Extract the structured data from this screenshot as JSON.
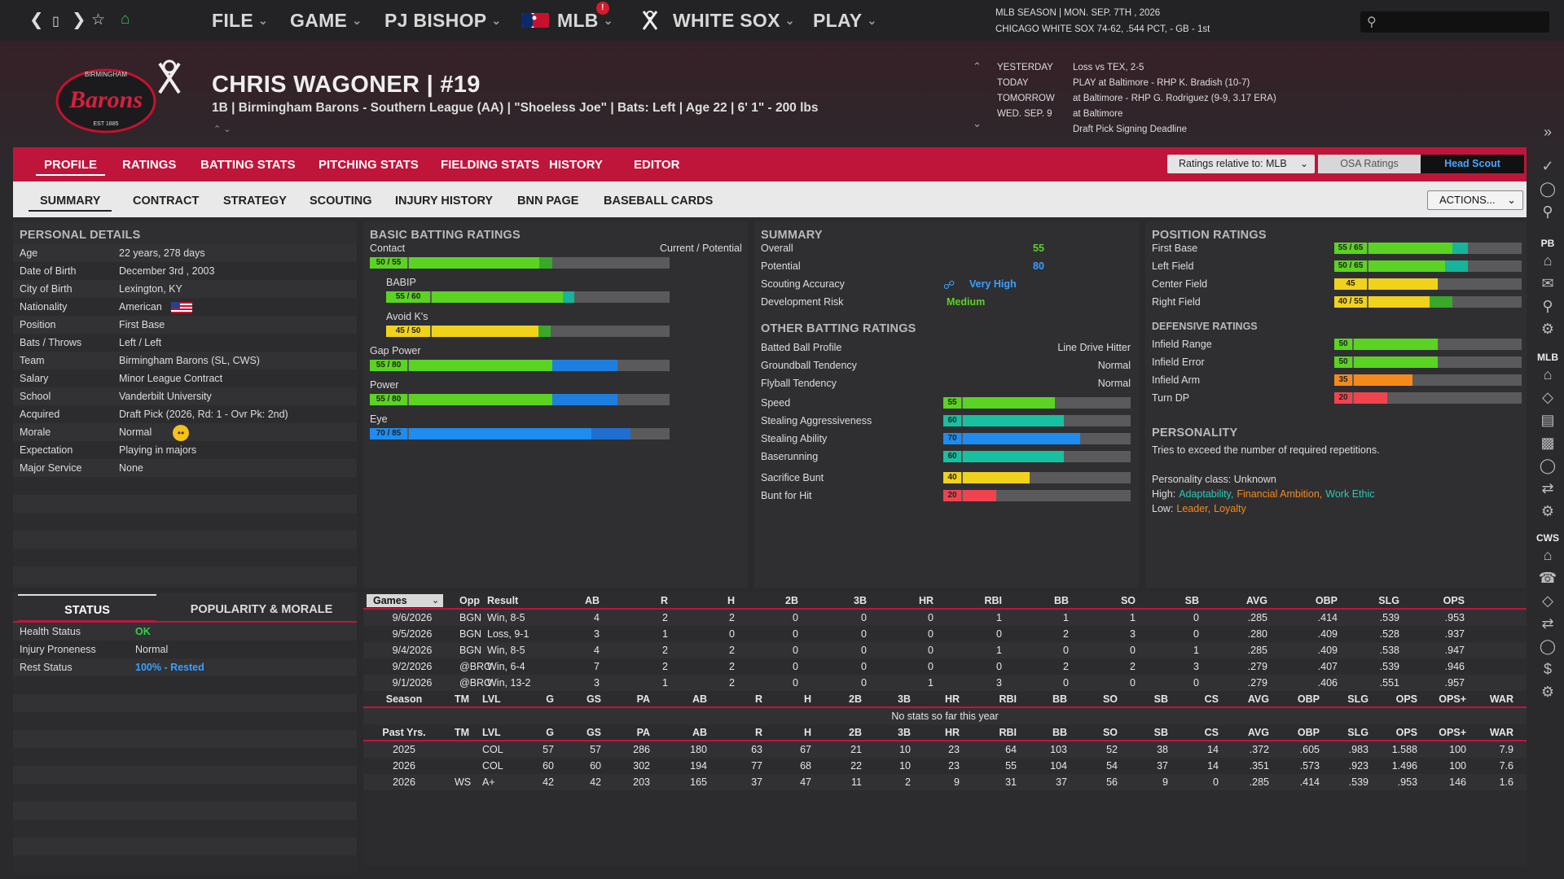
{
  "nav": {
    "menus": [
      "FILE",
      "GAME",
      "PJ BISHOP",
      "MLB",
      "WHITE SOX",
      "PLAY"
    ],
    "mlb_badge": "!"
  },
  "season": {
    "line1": "MLB SEASON  |  MON. SEP. 7TH , 2026",
    "line2": "CHICAGO WHITE SOX  74-62, .544 PCT, - GB - 1st"
  },
  "player": {
    "name": "CHRIS WAGONER  |  #19",
    "info": "1B | Birmingham Barons - Southern League (AA)  |  \"Shoeless Joe\" | Bats: Left  |  Age 22  |  6' 1\"  - 200 lbs",
    "team_logo_text": "Barons",
    "team_logo_top": "BIRMINGHAM",
    "team_logo_bottom": "EST 1885"
  },
  "schedule": [
    {
      "k": "YESTERDAY",
      "v": "Loss vs TEX, 2-5"
    },
    {
      "k": "TODAY",
      "v": "PLAY at Baltimore - RHP K. Bradish (10-7)"
    },
    {
      "k": "TOMORROW",
      "v": "at Baltimore - RHP G. Rodriguez (9-9, 3.17 ERA)"
    },
    {
      "k": "WED. SEP. 9",
      "v": "at Baltimore"
    },
    {
      "k": "",
      "v": "Draft Pick Signing Deadline"
    }
  ],
  "tabs1": [
    "PROFILE",
    "RATINGS",
    "BATTING STATS",
    "PITCHING STATS",
    "FIELDING STATS",
    "HISTORY",
    "EDITOR"
  ],
  "tabs2": [
    "SUMMARY",
    "CONTRACT",
    "STRATEGY",
    "SCOUTING",
    "INJURY HISTORY",
    "BNN PAGE",
    "BASEBALL CARDS"
  ],
  "controls": {
    "ratings_rel": "Ratings relative to: MLB",
    "osa": "OSA Ratings",
    "head_scout": "Head Scout",
    "actions": "ACTIONS..."
  },
  "personal": {
    "title": "PERSONAL DETAILS",
    "rows": [
      {
        "k": "Age",
        "v": "22 years, 278 days"
      },
      {
        "k": "Date of Birth",
        "v": "December 3rd , 2003"
      },
      {
        "k": "City of Birth",
        "v": "Lexington, KY"
      },
      {
        "k": "Nationality",
        "v": "American"
      },
      {
        "k": "Position",
        "v": "First Base"
      },
      {
        "k": "Bats / Throws",
        "v": "Left / Left"
      },
      {
        "k": "Team",
        "v": "Birmingham Barons (SL, CWS)"
      },
      {
        "k": "Salary",
        "v": "Minor League Contract"
      },
      {
        "k": "School",
        "v": "Vanderbilt University"
      },
      {
        "k": "Acquired",
        "v": "Draft Pick (2026, Rd: 1 - Ovr Pk: 2nd)"
      },
      {
        "k": "Morale",
        "v": "Normal"
      },
      {
        "k": "Expectation",
        "v": "Playing in majors"
      },
      {
        "k": "Major Service",
        "v": "None"
      }
    ]
  },
  "status": {
    "tab_status": "STATUS",
    "tab_pop": "POPULARITY & MORALE",
    "rows": [
      {
        "k": "Health Status",
        "v": "OK",
        "color": "#2fd44a"
      },
      {
        "k": "Injury Proneness",
        "v": "Normal",
        "color": "#dddddd"
      },
      {
        "k": "Rest Status",
        "v": "100% - Rested",
        "color": "#3aa0ff"
      }
    ]
  },
  "batting": {
    "title": "BASIC BATTING RATINGS",
    "hdr": "Current / Potential",
    "rows": [
      {
        "name": "Contact",
        "label": "50 / 55",
        "cur": 50,
        "pot": 55,
        "color": "#5bd322",
        "pcolor": "#3aa828",
        "indent": false
      },
      {
        "name": "BABIP",
        "label": "55 / 60",
        "cur": 55,
        "pot": 60,
        "color": "#5bd322",
        "pcolor": "#17b39a",
        "indent": true
      },
      {
        "name": "Avoid K's",
        "label": "45 / 50",
        "cur": 45,
        "pot": 50,
        "color": "#f1d21b",
        "pcolor": "#3aa828",
        "indent": true
      },
      {
        "name": "Gap Power",
        "label": "55 / 80",
        "cur": 55,
        "pot": 80,
        "color": "#5bd322",
        "pcolor": "#1f7fe0",
        "indent": false
      },
      {
        "name": "Power",
        "label": "55 / 80",
        "cur": 55,
        "pot": 80,
        "color": "#5bd322",
        "pcolor": "#1f7fe0",
        "indent": false
      },
      {
        "name": "Eye",
        "label": "70 / 85",
        "cur": 70,
        "pot": 85,
        "color": "#1e8cf0",
        "pcolor": "#1f6fd0",
        "indent": false
      }
    ]
  },
  "summary": {
    "title": "SUMMARY",
    "rows": [
      {
        "k": "Overall",
        "v": "55",
        "color": "#5bd322"
      },
      {
        "k": "Potential",
        "v": "80",
        "color": "#3aa0ff"
      },
      {
        "k": "Scouting Accuracy",
        "v": "Very High",
        "color": "#3aa0ff"
      },
      {
        "k": "Development Risk",
        "v": "Medium",
        "color": "#5bd322"
      }
    ]
  },
  "other": {
    "title": "OTHER BATTING RATINGS",
    "text_rows": [
      {
        "k": "Batted Ball Profile",
        "v": "Line Drive Hitter"
      },
      {
        "k": "Groundball Tendency",
        "v": "Normal"
      },
      {
        "k": "Flyball Tendency",
        "v": "Normal"
      }
    ],
    "bars": [
      {
        "k": "Speed",
        "v": 55,
        "label": "55",
        "color": "#5bd322"
      },
      {
        "k": "Stealing Aggressiveness",
        "v": 60,
        "label": "60",
        "color": "#17c0a0"
      },
      {
        "k": "Stealing Ability",
        "v": 70,
        "label": "70",
        "color": "#1e8cf0"
      },
      {
        "k": "Baserunning",
        "v": 60,
        "label": "60",
        "color": "#17c0a0"
      },
      {
        "k": "Sacrifice Bunt",
        "v": 40,
        "label": "40",
        "color": "#f1d21b"
      },
      {
        "k": "Bunt for Hit",
        "v": 20,
        "label": "20",
        "color": "#f0434e"
      }
    ]
  },
  "position": {
    "title": "POSITION RATINGS",
    "rows": [
      {
        "k": "First Base",
        "label": "55 / 65",
        "cur": 55,
        "pot": 65,
        "color": "#5bd322",
        "pcolor": "#17b39a"
      },
      {
        "k": "Left Field",
        "label": "50 / 65",
        "cur": 50,
        "pot": 65,
        "color": "#5bd322",
        "pcolor": "#17b39a"
      },
      {
        "k": "Center Field",
        "label": "45",
        "cur": 45,
        "pot": 45,
        "color": "#f1d21b",
        "pcolor": "#f1d21b"
      },
      {
        "k": "Right Field",
        "label": "40 / 55",
        "cur": 40,
        "pot": 55,
        "color": "#f1d21b",
        "pcolor": "#3aa828"
      }
    ]
  },
  "defensive": {
    "title": "DEFENSIVE RATINGS",
    "rows": [
      {
        "k": "Infield Range",
        "label": "50",
        "v": 50,
        "color": "#5bd322"
      },
      {
        "k": "Infield Error",
        "label": "50",
        "v": 50,
        "color": "#5bd322"
      },
      {
        "k": "Infield Arm",
        "label": "35",
        "v": 35,
        "color": "#f58a1c"
      },
      {
        "k": "Turn DP",
        "label": "20",
        "v": 20,
        "color": "#f0434e"
      }
    ]
  },
  "personality": {
    "title": "PERSONALITY",
    "desc": "Tries to exceed the number of required repetitions.",
    "class": "Personality class: Unknown",
    "high_lbl": "High:",
    "high": [
      {
        "t": "Adaptability,",
        "c": "#2ec9b0"
      },
      {
        "t": "Financial Ambition,",
        "c": "#f58a1c"
      },
      {
        "t": "Work Ethic",
        "c": "#2ec9b0"
      }
    ],
    "low_lbl": "Low:",
    "low": [
      {
        "t": "Leader,",
        "c": "#f58a1c"
      },
      {
        "t": "Loyalty",
        "c": "#f58a1c"
      }
    ]
  },
  "games": {
    "headers": [
      "Games",
      "Opp",
      "Result",
      "AB",
      "R",
      "H",
      "2B",
      "3B",
      "HR",
      "RBI",
      "BB",
      "SO",
      "SB",
      "AVG",
      "OBP",
      "SLG",
      "OPS"
    ],
    "rows": [
      [
        "9/6/2026",
        "BGN",
        "Win, 8-5",
        "4",
        "2",
        "2",
        "0",
        "0",
        "0",
        "1",
        "1",
        "1",
        "0",
        ".285",
        ".414",
        ".539",
        ".953"
      ],
      [
        "9/5/2026",
        "BGN",
        "Loss, 9-1",
        "3",
        "1",
        "0",
        "0",
        "0",
        "0",
        "0",
        "2",
        "3",
        "0",
        ".280",
        ".409",
        ".528",
        ".937"
      ],
      [
        "9/4/2026",
        "BGN",
        "Win, 8-5",
        "4",
        "2",
        "2",
        "0",
        "0",
        "0",
        "1",
        "0",
        "0",
        "1",
        ".285",
        ".409",
        ".538",
        ".947"
      ],
      [
        "9/2/2026",
        "@BRO",
        "Win, 6-4",
        "7",
        "2",
        "2",
        "0",
        "0",
        "0",
        "0",
        "2",
        "2",
        "3",
        ".279",
        ".407",
        ".539",
        ".946"
      ],
      [
        "9/1/2026",
        "@BRO",
        "Win, 13-2",
        "3",
        "1",
        "2",
        "0",
        "0",
        "1",
        "3",
        "0",
        "0",
        "0",
        ".279",
        ".406",
        ".551",
        ".957"
      ]
    ]
  },
  "season_tbl": {
    "headers": [
      "Season",
      "TM",
      "LVL",
      "G",
      "GS",
      "PA",
      "AB",
      "R",
      "H",
      "2B",
      "3B",
      "HR",
      "RBI",
      "BB",
      "SO",
      "SB",
      "CS",
      "AVG",
      "OBP",
      "SLG",
      "OPS",
      "OPS+",
      "WAR"
    ],
    "empty": "No stats so far this year"
  },
  "past": {
    "headers": [
      "Past Yrs.",
      "TM",
      "LVL",
      "G",
      "GS",
      "PA",
      "AB",
      "R",
      "H",
      "2B",
      "3B",
      "HR",
      "RBI",
      "BB",
      "SO",
      "SB",
      "CS",
      "AVG",
      "OBP",
      "SLG",
      "OPS",
      "OPS+",
      "WAR"
    ],
    "rows": [
      [
        "2025",
        "",
        "COL",
        "57",
        "57",
        "286",
        "180",
        "63",
        "67",
        "21",
        "10",
        "23",
        "64",
        "103",
        "52",
        "38",
        "14",
        ".372",
        ".605",
        ".983",
        "1.588",
        "100",
        "7.9"
      ],
      [
        "2026",
        "",
        "COL",
        "60",
        "60",
        "302",
        "194",
        "77",
        "68",
        "22",
        "10",
        "23",
        "55",
        "104",
        "54",
        "37",
        "14",
        ".351",
        ".573",
        ".923",
        "1.496",
        "100",
        "7.6"
      ],
      [
        "2026",
        "WS",
        "A+",
        "42",
        "42",
        "203",
        "165",
        "37",
        "47",
        "11",
        "2",
        "9",
        "31",
        "37",
        "56",
        "9",
        "0",
        ".285",
        ".414",
        ".539",
        ".953",
        "146",
        "1.6"
      ]
    ]
  },
  "sidebar": {
    "pb": "PB",
    "mlb": "MLB",
    "cws": "CWS"
  }
}
